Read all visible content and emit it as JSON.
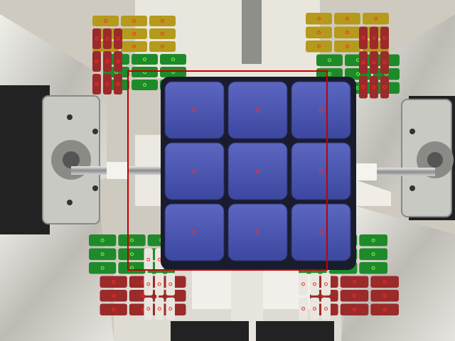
{
  "camera": {
    "overlay_color": "#c40000",
    "marker_color_red": "#ff2a2a",
    "marker_color_blue": "#1a1aff",
    "marker_color_green": "#7cff4a"
  },
  "cube": {
    "front_face": [
      [
        "blue",
        "blue",
        "blue"
      ],
      [
        "blue",
        "blue",
        "blue"
      ],
      [
        "blue",
        "blue",
        "blue"
      ]
    ],
    "sticker_colors": {
      "blue": "#4a57b0",
      "green": "#1f8a2a",
      "yellow": "#b59a1c",
      "red": "#9b2a2a",
      "white": "#e8e6df"
    }
  },
  "mirrors": [
    {
      "id": "top-left",
      "faces": [
        "yellow",
        "green",
        "red"
      ]
    },
    {
      "id": "top-right",
      "faces": [
        "yellow",
        "green",
        "red"
      ]
    },
    {
      "id": "bottom-left",
      "faces": [
        "green",
        "red",
        "white"
      ]
    },
    {
      "id": "bottom-right",
      "faces": [
        "green",
        "red",
        "white"
      ]
    }
  ]
}
